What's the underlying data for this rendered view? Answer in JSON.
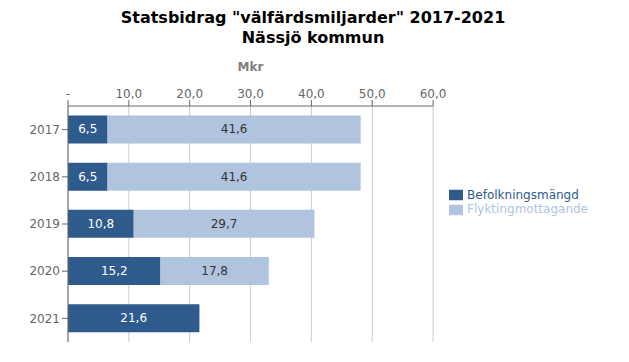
{
  "chart_data": {
    "type": "bar",
    "orientation": "horizontal",
    "stacked": true,
    "title": "Statsbidrag \"välfärdsmiljarder\" 2017-2021",
    "subtitle": "Nässjö kommun",
    "xlabel": "Mkr",
    "categories": [
      "2017",
      "2018",
      "2019",
      "2020",
      "2021"
    ],
    "series": [
      {
        "name": "Befolkningsmängd",
        "color": "#2E5B8C",
        "values": [
          6.5,
          6.5,
          10.8,
          15.2,
          21.6
        ],
        "value_labels": [
          "6,5",
          "6,5",
          "10,8",
          "15,2",
          "21,6"
        ]
      },
      {
        "name": "Flyktingmottagande",
        "color": "#B0C4DE",
        "values": [
          41.6,
          41.6,
          29.7,
          17.8,
          0.0
        ],
        "value_labels": [
          "41,6",
          "41,6",
          "29,7",
          "17,8",
          null
        ]
      }
    ],
    "xlim": [
      0,
      60
    ],
    "xticks": [
      {
        "value": 0,
        "label": "-"
      },
      {
        "value": 10,
        "label": "10,0"
      },
      {
        "value": 20,
        "label": "20,0"
      },
      {
        "value": 30,
        "label": "30,0"
      },
      {
        "value": 40,
        "label": "40,0"
      },
      {
        "value": 50,
        "label": "50,0"
      },
      {
        "value": 60,
        "label": "60,0"
      }
    ],
    "grid": true,
    "legend": "right",
    "data_labels": true
  }
}
